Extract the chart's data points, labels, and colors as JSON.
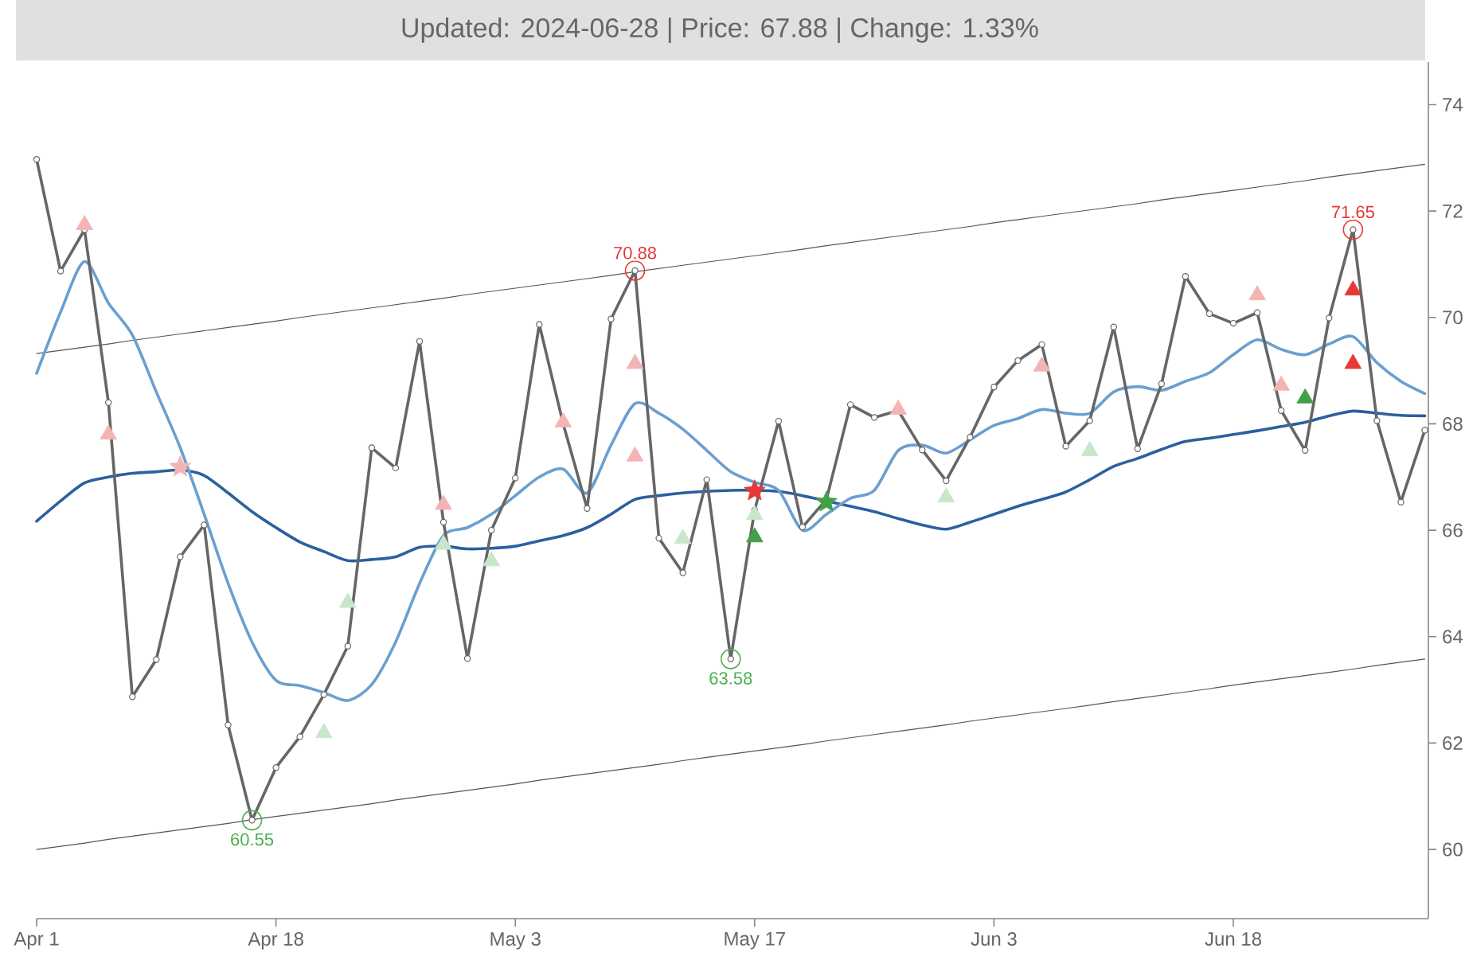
{
  "chart_data": {
    "type": "line",
    "title": "Updated: 2024-06-28 | Price: 67.88 | Change: 1.33%",
    "categories": [
      "Apr 1",
      null,
      null,
      null,
      null,
      null,
      null,
      null,
      null,
      null,
      "Apr 18",
      null,
      null,
      null,
      null,
      null,
      null,
      null,
      null,
      null,
      "May 3",
      null,
      null,
      null,
      null,
      null,
      null,
      null,
      null,
      null,
      "May 17",
      null,
      null,
      null,
      null,
      null,
      null,
      null,
      null,
      null,
      "Jun 3",
      null,
      null,
      null,
      null,
      null,
      null,
      null,
      null,
      null,
      "Jun 18",
      null,
      null,
      null,
      null,
      null,
      null,
      null,
      null
    ],
    "ylim": [
      58.7,
      74.8
    ],
    "yticks": [
      60,
      62,
      64,
      66,
      68,
      70,
      72,
      74
    ],
    "series": [
      {
        "type": "line",
        "color": "#555555",
        "values": [
          69.32,
          69.38,
          69.44,
          69.5,
          69.57,
          69.63,
          69.69,
          69.75,
          69.81,
          69.87,
          69.93,
          70.0,
          70.06,
          70.12,
          70.18,
          70.24,
          70.3,
          70.36,
          70.43,
          70.49,
          70.55,
          70.61,
          70.67,
          70.73,
          70.79,
          70.86,
          70.92,
          70.98,
          71.04,
          71.1,
          71.16,
          71.22,
          71.28,
          71.35,
          71.41,
          71.47,
          71.53,
          71.59,
          71.65,
          71.71,
          71.78,
          71.84,
          71.9,
          71.96,
          72.02,
          72.08,
          72.14,
          72.21,
          72.27,
          72.33,
          72.39,
          72.45,
          72.51,
          72.57,
          72.64,
          72.7,
          72.76,
          72.82,
          72.88
        ]
      },
      {
        "type": "line",
        "color": "#555555",
        "values": [
          60.0,
          60.06,
          60.12,
          60.19,
          60.25,
          60.31,
          60.37,
          60.43,
          60.49,
          60.56,
          60.62,
          60.68,
          60.74,
          60.8,
          60.86,
          60.93,
          60.99,
          61.05,
          61.11,
          61.17,
          61.23,
          61.3,
          61.36,
          61.42,
          61.48,
          61.54,
          61.6,
          61.67,
          61.73,
          61.79,
          61.85,
          61.91,
          61.97,
          62.04,
          62.1,
          62.16,
          62.22,
          62.28,
          62.34,
          62.41,
          62.47,
          62.53,
          62.59,
          62.65,
          62.71,
          62.78,
          62.84,
          62.9,
          62.96,
          63.02,
          63.09,
          63.15,
          63.21,
          63.27,
          63.33,
          63.39,
          63.46,
          63.52,
          63.58
        ]
      },
      {
        "type": "line",
        "color": "#2c5f9e",
        "values": [
          66.17,
          66.55,
          66.89,
          67.0,
          67.07,
          67.1,
          67.13,
          67.03,
          66.7,
          66.35,
          66.05,
          65.78,
          65.6,
          65.43,
          65.45,
          65.5,
          65.68,
          65.7,
          65.65,
          65.66,
          65.7,
          65.8,
          65.9,
          66.05,
          66.3,
          66.58,
          66.65,
          66.7,
          66.73,
          66.75,
          66.75,
          66.73,
          66.65,
          66.55,
          66.45,
          66.35,
          66.22,
          66.1,
          66.02,
          66.15,
          66.3,
          66.45,
          66.58,
          66.72,
          66.95,
          67.2,
          67.35,
          67.52,
          67.67,
          67.73,
          67.8,
          67.87,
          67.95,
          68.03,
          68.15,
          68.24,
          68.2,
          68.16,
          68.15
        ]
      },
      {
        "type": "line",
        "color": "#6a9fd0",
        "values": [
          68.95,
          70.1,
          71.05,
          70.27,
          69.67,
          68.6,
          67.55,
          66.3,
          65.0,
          63.9,
          63.18,
          63.08,
          62.95,
          62.8,
          63.1,
          63.9,
          65.0,
          65.9,
          66.05,
          66.3,
          66.65,
          67.0,
          67.15,
          66.7,
          67.6,
          68.38,
          68.2,
          67.9,
          67.5,
          67.1,
          66.9,
          66.75,
          66.0,
          66.3,
          66.6,
          66.75,
          67.5,
          67.6,
          67.45,
          67.7,
          67.97,
          68.1,
          68.27,
          68.2,
          68.2,
          68.6,
          68.7,
          68.63,
          68.8,
          68.96,
          69.3,
          69.58,
          69.4,
          69.3,
          69.5,
          69.64,
          69.15,
          68.8,
          68.57
        ]
      },
      {
        "color": "#666666",
        "marker": "circle",
        "values": [
          72.97,
          70.87,
          71.65,
          68.4,
          62.87,
          63.57,
          65.5,
          66.1,
          62.34,
          60.55,
          61.54,
          62.12,
          62.91,
          63.82,
          67.55,
          67.17,
          69.55,
          66.15,
          63.59,
          66.0,
          66.98,
          69.87,
          68.0,
          66.41,
          69.97,
          70.88,
          65.85,
          65.2,
          66.95,
          63.58,
          66.38,
          68.05,
          66.06,
          66.58,
          68.36,
          68.12,
          68.25,
          67.51,
          66.93,
          67.75,
          68.69,
          69.19,
          69.49,
          67.58,
          68.06,
          69.82,
          67.53,
          68.75,
          70.77,
          70.07,
          69.89,
          70.09,
          68.25,
          67.5,
          69.99,
          71.65,
          68.06,
          66.53,
          67.88
        ],
        "value_labels": [
          null,
          null,
          null,
          null,
          null,
          null,
          null,
          null,
          null,
          "60.55",
          null,
          null,
          null,
          null,
          null,
          null,
          null,
          null,
          null,
          null,
          null,
          null,
          null,
          null,
          null,
          "70.88",
          null,
          null,
          null,
          "63.58",
          null,
          null,
          null,
          null,
          null,
          null,
          null,
          null,
          null,
          null,
          null,
          null,
          null,
          null,
          null,
          null,
          null,
          null,
          null,
          null,
          null,
          null,
          null,
          null,
          null,
          "71.65",
          null,
          null,
          null
        ]
      },
      {
        "type": "scatter",
        "color": "#f4b4b4",
        "marker": "triangle",
        "values": [
          null,
          null,
          71.74,
          67.8,
          null,
          null,
          null,
          null,
          null,
          null,
          null,
          null,
          null,
          null,
          null,
          null,
          null,
          66.48,
          null,
          null,
          null,
          null,
          68.03,
          null,
          null,
          69.13,
          null,
          null,
          null,
          null,
          null,
          null,
          null,
          null,
          null,
          null,
          68.27,
          null,
          null,
          null,
          null,
          null,
          69.08,
          null,
          null,
          null,
          null,
          null,
          null,
          null,
          null,
          70.42,
          68.72,
          null,
          null,
          null,
          null,
          null,
          null
        ]
      },
      {
        "type": "scatter",
        "color": "#f4b4b4",
        "marker": "triangle",
        "values": [
          null,
          null,
          null,
          null,
          null,
          null,
          null,
          null,
          null,
          null,
          null,
          null,
          null,
          null,
          null,
          null,
          null,
          null,
          null,
          null,
          null,
          null,
          null,
          null,
          null,
          67.39,
          null,
          null,
          null,
          null,
          null,
          null,
          null,
          null,
          null,
          null,
          null,
          null,
          null,
          null,
          null,
          null,
          null,
          null,
          null,
          null,
          null,
          null,
          null,
          null,
          null,
          null,
          null,
          null,
          null,
          null,
          null,
          null,
          null
        ]
      },
      {
        "type": "scatter",
        "color": "#f4b4b4",
        "marker": "star",
        "values": [
          null,
          null,
          null,
          null,
          null,
          null,
          67.19,
          null,
          null,
          null,
          null,
          null,
          null,
          null,
          null,
          null,
          null,
          null,
          null,
          null,
          null,
          null,
          null,
          null,
          null,
          null,
          null,
          null,
          null,
          null,
          null,
          null,
          null,
          null,
          null,
          null,
          null,
          null,
          null,
          null,
          null,
          null,
          null,
          null,
          null,
          null,
          null,
          null,
          null,
          null,
          null,
          null,
          null,
          null,
          null,
          null,
          null,
          null,
          null
        ]
      },
      {
        "type": "scatter",
        "color": "#c8e6c9",
        "marker": "triangle",
        "values": [
          null,
          null,
          null,
          null,
          null,
          null,
          null,
          null,
          null,
          null,
          null,
          null,
          62.19,
          64.64,
          null,
          null,
          null,
          65.73,
          null,
          65.42,
          null,
          null,
          null,
          null,
          null,
          null,
          null,
          65.84,
          null,
          null,
          66.29,
          null,
          null,
          null,
          null,
          null,
          null,
          null,
          66.62,
          null,
          null,
          null,
          null,
          null,
          67.49,
          null,
          null,
          null,
          null,
          null,
          null,
          null,
          null,
          null,
          null,
          null,
          null,
          null,
          null
        ]
      },
      {
        "type": "scatter",
        "color": "#e53935",
        "marker": "triangle",
        "values": [
          null,
          null,
          null,
          null,
          null,
          null,
          null,
          null,
          null,
          null,
          null,
          null,
          null,
          null,
          null,
          null,
          null,
          null,
          null,
          null,
          null,
          null,
          null,
          null,
          null,
          null,
          null,
          null,
          null,
          null,
          null,
          null,
          null,
          null,
          null,
          null,
          null,
          null,
          null,
          null,
          null,
          null,
          null,
          null,
          null,
          null,
          null,
          null,
          null,
          null,
          null,
          null,
          null,
          null,
          null,
          70.51,
          null,
          null,
          null
        ]
      },
      {
        "type": "scatter",
        "color": "#e53935",
        "marker": "triangle",
        "values": [
          null,
          null,
          null,
          null,
          null,
          null,
          null,
          null,
          null,
          null,
          null,
          null,
          null,
          null,
          null,
          null,
          null,
          null,
          null,
          null,
          null,
          null,
          null,
          null,
          null,
          null,
          null,
          null,
          null,
          null,
          null,
          null,
          null,
          null,
          null,
          null,
          null,
          null,
          null,
          null,
          null,
          null,
          null,
          null,
          null,
          null,
          null,
          null,
          null,
          null,
          null,
          null,
          null,
          null,
          null,
          69.13,
          null,
          null,
          null
        ]
      },
      {
        "type": "scatter",
        "color": "#43a047",
        "marker": "triangle",
        "values": [
          null,
          null,
          null,
          null,
          null,
          null,
          null,
          null,
          null,
          null,
          null,
          null,
          null,
          null,
          null,
          null,
          null,
          null,
          null,
          null,
          null,
          null,
          null,
          null,
          null,
          null,
          null,
          null,
          null,
          null,
          65.87,
          null,
          null,
          null,
          null,
          null,
          null,
          null,
          null,
          null,
          null,
          null,
          null,
          null,
          null,
          null,
          null,
          null,
          null,
          null,
          null,
          null,
          null,
          68.48,
          null,
          null,
          null,
          null,
          null
        ]
      },
      {
        "type": "scatter",
        "color": "#e53935",
        "marker": "star",
        "values": [
          null,
          null,
          null,
          null,
          null,
          null,
          null,
          null,
          null,
          null,
          null,
          null,
          null,
          null,
          null,
          null,
          null,
          null,
          null,
          null,
          null,
          null,
          null,
          null,
          null,
          null,
          null,
          null,
          null,
          null,
          66.74,
          null,
          null,
          null,
          null,
          null,
          null,
          null,
          null,
          null,
          null,
          null,
          null,
          null,
          null,
          null,
          null,
          null,
          null,
          null,
          null,
          null,
          null,
          null,
          null,
          null,
          null,
          null,
          null
        ]
      },
      {
        "type": "scatter",
        "color": "#43a047",
        "marker": "star",
        "values": [
          null,
          null,
          null,
          null,
          null,
          null,
          null,
          null,
          null,
          null,
          null,
          null,
          null,
          null,
          null,
          null,
          null,
          null,
          null,
          null,
          null,
          null,
          null,
          null,
          null,
          null,
          null,
          null,
          null,
          null,
          null,
          null,
          null,
          66.53,
          null,
          null,
          null,
          null,
          null,
          null,
          null,
          null,
          null,
          null,
          null,
          null,
          null,
          null,
          null,
          null,
          null,
          null,
          null,
          null,
          null,
          null,
          null,
          null,
          null
        ]
      }
    ]
  }
}
